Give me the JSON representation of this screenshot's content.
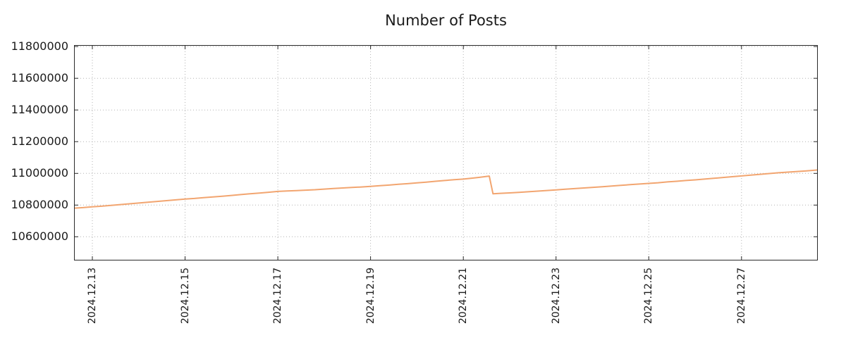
{
  "title": "Number of Posts",
  "colors": {
    "line": "#f2a570",
    "grid": "#b2b2b2",
    "border": "#2a2a2a",
    "text": "#1a1a1a",
    "background": "#ffffff"
  },
  "chart_data": {
    "type": "line",
    "title": "Number of Posts",
    "xlabel": "",
    "ylabel": "",
    "legend": "none",
    "grid": "dotted",
    "x_domain": [
      12.62,
      28.63
    ],
    "y_domain": [
      10455000,
      11805000
    ],
    "x_ticks": [
      {
        "value": 13,
        "label": "2024.12.13"
      },
      {
        "value": 15,
        "label": "2024.12.15"
      },
      {
        "value": 17,
        "label": "2024.12.17"
      },
      {
        "value": 19,
        "label": "2024.12.19"
      },
      {
        "value": 21,
        "label": "2024.12.21"
      },
      {
        "value": 23,
        "label": "2024.12.23"
      },
      {
        "value": 25,
        "label": "2024.12.25"
      },
      {
        "value": 27,
        "label": "2024.12.27"
      }
    ],
    "y_ticks": [
      {
        "value": 10600000,
        "label": "10600000"
      },
      {
        "value": 10800000,
        "label": "10800000"
      },
      {
        "value": 11000000,
        "label": "11000000"
      },
      {
        "value": 11200000,
        "label": "11200000"
      },
      {
        "value": 11400000,
        "label": "11400000"
      },
      {
        "value": 11600000,
        "label": "11600000"
      },
      {
        "value": 11800000,
        "label": "11800000"
      }
    ],
    "series": [
      {
        "name": "Number of Posts",
        "points": [
          [
            12.62,
            10781000
          ],
          [
            12.8,
            10784000
          ],
          [
            13.0,
            10789000
          ],
          [
            13.2,
            10793000
          ],
          [
            13.4,
            10798000
          ],
          [
            13.6,
            10803000
          ],
          [
            13.8,
            10808000
          ],
          [
            14.0,
            10813000
          ],
          [
            14.2,
            10818000
          ],
          [
            14.4,
            10823000
          ],
          [
            14.6,
            10828000
          ],
          [
            14.8,
            10833000
          ],
          [
            15.0,
            10838000
          ],
          [
            15.2,
            10842000
          ],
          [
            15.4,
            10847000
          ],
          [
            15.6,
            10851000
          ],
          [
            15.8,
            10856000
          ],
          [
            16.0,
            10861000
          ],
          [
            16.2,
            10866000
          ],
          [
            16.4,
            10871000
          ],
          [
            16.6,
            10876000
          ],
          [
            16.8,
            10881000
          ],
          [
            17.0,
            10886000
          ],
          [
            17.2,
            10889000
          ],
          [
            17.4,
            10891000
          ],
          [
            17.6,
            10894000
          ],
          [
            17.8,
            10897000
          ],
          [
            18.0,
            10901000
          ],
          [
            18.2,
            10905000
          ],
          [
            18.4,
            10908000
          ],
          [
            18.6,
            10911000
          ],
          [
            18.8,
            10914000
          ],
          [
            19.0,
            10918000
          ],
          [
            19.2,
            10922000
          ],
          [
            19.4,
            10926000
          ],
          [
            19.6,
            10931000
          ],
          [
            19.8,
            10935000
          ],
          [
            20.0,
            10940000
          ],
          [
            20.2,
            10945000
          ],
          [
            20.4,
            10950000
          ],
          [
            20.6,
            10955000
          ],
          [
            20.8,
            10960000
          ],
          [
            21.0,
            10964000
          ],
          [
            21.2,
            10970000
          ],
          [
            21.35,
            10975000
          ],
          [
            21.5,
            10981000
          ],
          [
            21.56,
            10983000
          ],
          [
            21.64,
            10871000
          ],
          [
            21.8,
            10874000
          ],
          [
            22.0,
            10877000
          ],
          [
            22.2,
            10880000
          ],
          [
            22.4,
            10884000
          ],
          [
            22.6,
            10888000
          ],
          [
            22.8,
            10892000
          ],
          [
            23.0,
            10896000
          ],
          [
            23.2,
            10900000
          ],
          [
            23.4,
            10904000
          ],
          [
            23.6,
            10908000
          ],
          [
            23.8,
            10912000
          ],
          [
            24.0,
            10916000
          ],
          [
            24.2,
            10920000
          ],
          [
            24.4,
            10925000
          ],
          [
            24.6,
            10929000
          ],
          [
            24.8,
            10933000
          ],
          [
            25.0,
            10937000
          ],
          [
            25.2,
            10941000
          ],
          [
            25.4,
            10946000
          ],
          [
            25.6,
            10950000
          ],
          [
            25.8,
            10955000
          ],
          [
            26.0,
            10959000
          ],
          [
            26.2,
            10964000
          ],
          [
            26.4,
            10969000
          ],
          [
            26.6,
            10974000
          ],
          [
            26.8,
            10979000
          ],
          [
            27.0,
            10984000
          ],
          [
            27.2,
            10989000
          ],
          [
            27.4,
            10994000
          ],
          [
            27.6,
            10999000
          ],
          [
            27.8,
            11004000
          ],
          [
            28.0,
            11008000
          ],
          [
            28.2,
            11012000
          ],
          [
            28.4,
            11016000
          ],
          [
            28.63,
            11021000
          ]
        ]
      }
    ]
  }
}
